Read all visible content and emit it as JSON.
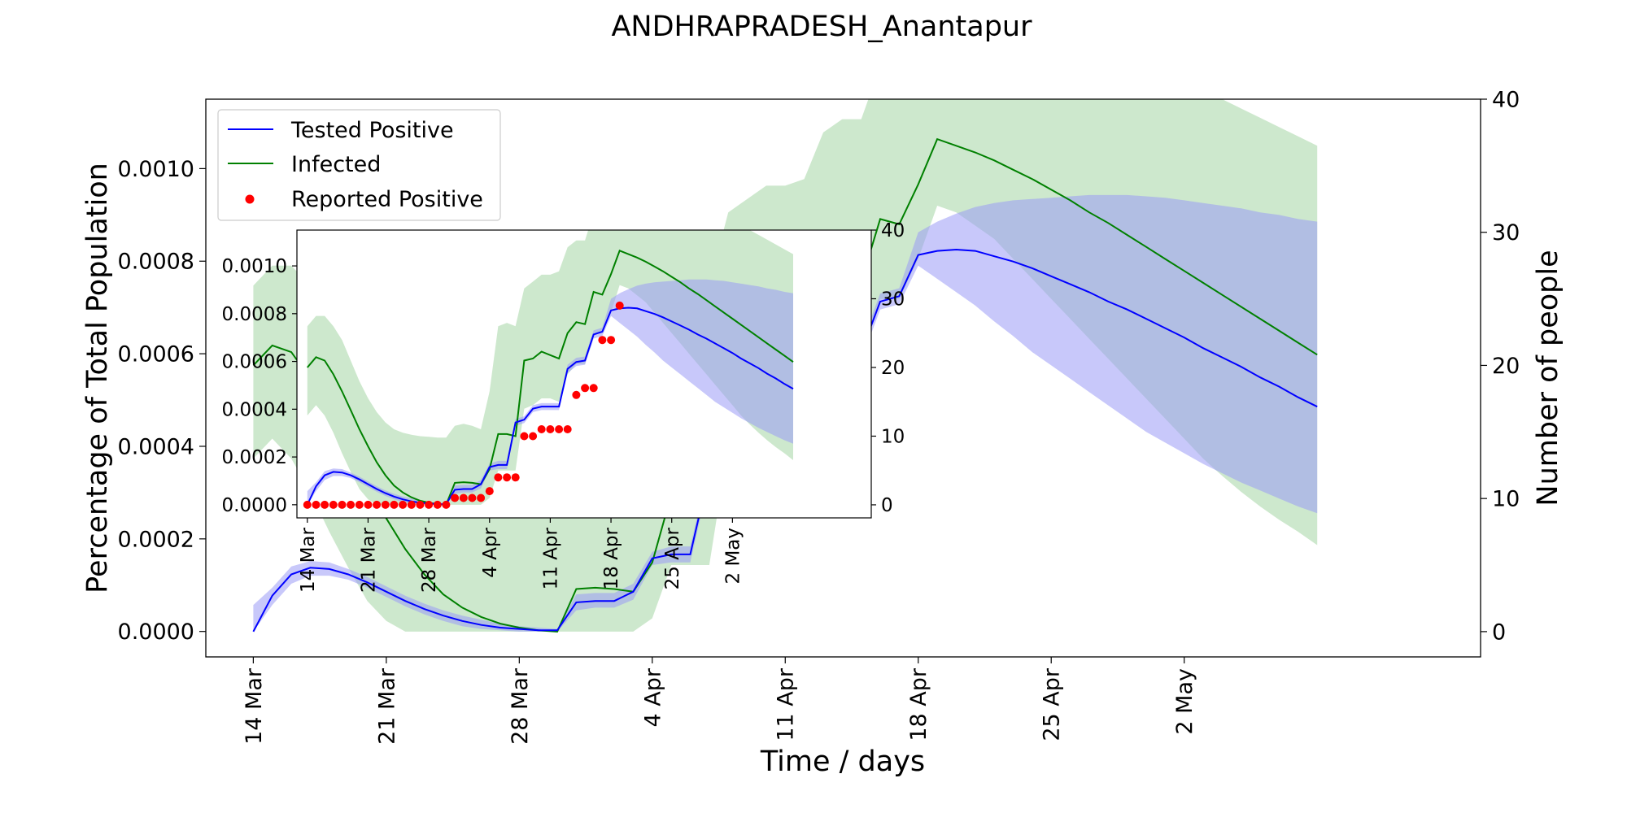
{
  "chart_data": {
    "type": "line",
    "title": "ANDHRAPRADESH_Anantapur",
    "xlabel": "Time / days",
    "ylabel_left": "Percentage of Total Population",
    "ylabel_right": "Number of people",
    "x_tick_labels": [
      "14 Mar",
      "21 Mar",
      "28 Mar",
      "4 Apr",
      "11 Apr",
      "18 Apr",
      "25 Apr",
      "2 May"
    ],
    "y_left_ticks": [
      "0.0000",
      "0.0002",
      "0.0004",
      "0.0006",
      "0.0008",
      "0.0010"
    ],
    "y_right_ticks": [
      "0",
      "10",
      "20",
      "30",
      "40"
    ],
    "ylim_left": [
      -5.5e-05,
      0.00115
    ],
    "ylim_right": [
      -1.9,
      40.0
    ],
    "grid": false,
    "legend_placement": "upper-left",
    "legend": [
      {
        "label": "Tested Positive",
        "kind": "line",
        "color": "#0000ff"
      },
      {
        "label": "Infected",
        "kind": "line",
        "color": "#008000"
      },
      {
        "label": "Reported Positive",
        "kind": "dot",
        "color": "#ff0000"
      }
    ],
    "colors": {
      "tested": "#0000ff",
      "tested_band": "#9a9af5",
      "infected": "#008000",
      "infected_band": "#9bd19b",
      "reported": "#ff0000"
    },
    "x_days": [
      0,
      1,
      2,
      3,
      4,
      5,
      6,
      7,
      8,
      9,
      10,
      11,
      12,
      13,
      14,
      15,
      16,
      17,
      18,
      19,
      20,
      21,
      22,
      23,
      24,
      25,
      26,
      27,
      28,
      29,
      30,
      31,
      32,
      33,
      34,
      35,
      36,
      37,
      38,
      39,
      40,
      41,
      42,
      43,
      44,
      45,
      46,
      47,
      48,
      49,
      50,
      51,
      52,
      53,
      54,
      55,
      56
    ],
    "series": [
      {
        "name": "Tested Positive",
        "axis": "right",
        "values": [
          0,
          2.7,
          4.3,
          4.8,
          4.7,
          4.3,
          3.7,
          3.0,
          2.3,
          1.7,
          1.2,
          0.8,
          0.5,
          0.3,
          0.2,
          0.1,
          0.1,
          2.2,
          2.3,
          2.3,
          3.0,
          5.5,
          5.8,
          5.8,
          12.0,
          12.4,
          14.0,
          14.3,
          14.3,
          14.3,
          19.8,
          20.8,
          21.0,
          24.8,
          25.2,
          28.3,
          28.6,
          28.7,
          28.6,
          28.2,
          27.8,
          27.3,
          26.7,
          26.1,
          25.5,
          24.8,
          24.2,
          23.5,
          22.8,
          22.1,
          21.3,
          20.6,
          19.9,
          19.1,
          18.4,
          17.6,
          16.9
        ],
        "band_lower": [
          0,
          2.0,
          3.6,
          4.2,
          4.2,
          3.9,
          3.3,
          2.6,
          1.9,
          1.3,
          0.8,
          0.4,
          0.2,
          0.1,
          0,
          0,
          0,
          1.6,
          1.8,
          1.8,
          2.4,
          5.0,
          5.2,
          5.2,
          11.5,
          11.9,
          13.5,
          13.8,
          13.8,
          13.8,
          19.2,
          20.2,
          20.4,
          24.2,
          24.6,
          27.5,
          26.5,
          25.5,
          24.5,
          23.3,
          22.2,
          21.0,
          20.0,
          19.0,
          18.0,
          17.0,
          16.0,
          15.0,
          14.2,
          13.4,
          12.6,
          11.9,
          11.2,
          10.6,
          10.0,
          9.4,
          8.9
        ],
        "band_upper": [
          2.0,
          3.3,
          4.9,
          5.3,
          5.2,
          4.7,
          4.1,
          3.4,
          2.7,
          2.1,
          1.6,
          1.2,
          0.9,
          0.6,
          0.4,
          0.3,
          0.2,
          2.8,
          2.9,
          2.9,
          3.6,
          6.0,
          6.4,
          6.4,
          12.5,
          12.9,
          14.5,
          14.8,
          14.8,
          14.8,
          20.4,
          21.4,
          21.6,
          25.4,
          25.8,
          30.0,
          30.8,
          31.4,
          31.9,
          32.2,
          32.4,
          32.5,
          32.6,
          32.7,
          32.8,
          32.8,
          32.8,
          32.7,
          32.6,
          32.4,
          32.2,
          32.0,
          31.8,
          31.5,
          31.3,
          31.0,
          30.8
        ]
      },
      {
        "name": "Infected",
        "axis": "right",
        "values": [
          20.0,
          21.5,
          21.0,
          19.0,
          16.5,
          13.8,
          11.0,
          8.5,
          6.2,
          4.3,
          2.8,
          1.8,
          1.1,
          0.6,
          0.3,
          0.1,
          0,
          3.2,
          3.3,
          3.2,
          3.0,
          5.2,
          10.3,
          10.3,
          10.0,
          21.0,
          21.3,
          22.3,
          21.8,
          21.3,
          25.0,
          26.6,
          26.3,
          31.0,
          30.6,
          33.6,
          37.0,
          36.5,
          36.0,
          35.4,
          34.7,
          34.0,
          33.2,
          32.4,
          31.5,
          30.7,
          29.8,
          28.9,
          28.0,
          27.1,
          26.2,
          25.3,
          24.4,
          23.5,
          22.6,
          21.7,
          20.8
        ],
        "band_lower": [
          13.0,
          14.5,
          13.0,
          10.5,
          7.5,
          4.8,
          2.3,
          0.8,
          0,
          0,
          0,
          0,
          0,
          0,
          0,
          0,
          0,
          0,
          0,
          0,
          0,
          1.0,
          5.0,
          5.0,
          5.0,
          14.0,
          14.5,
          15.5,
          15.5,
          15.0,
          19.0,
          20.5,
          20.5,
          25.0,
          25.0,
          28.0,
          32.0,
          31.5,
          30.5,
          29.5,
          28.0,
          26.5,
          25.0,
          23.5,
          22.0,
          20.5,
          19.0,
          17.5,
          16.0,
          14.5,
          13.0,
          11.7,
          10.5,
          9.4,
          8.4,
          7.5,
          6.5
        ],
        "band_upper": [
          26.0,
          27.5,
          27.5,
          26.0,
          24.0,
          21.0,
          18.0,
          15.5,
          13.5,
          12.0,
          11.0,
          10.5,
          10.2,
          10.0,
          9.9,
          9.8,
          9.8,
          11.5,
          11.8,
          11.5,
          11.0,
          16.5,
          26.0,
          26.5,
          26.0,
          31.5,
          32.5,
          33.5,
          33.5,
          34.0,
          37.5,
          38.5,
          38.5,
          42.5,
          43.0,
          44.8,
          45.0,
          45.0,
          45.0,
          45.0,
          44.9,
          44.7,
          44.5,
          44.2,
          43.8,
          43.4,
          42.9,
          42.4,
          41.8,
          41.2,
          40.6,
          40.0,
          39.3,
          38.6,
          37.9,
          37.2,
          36.5
        ]
      },
      {
        "name": "Reported Positive",
        "axis": "right",
        "type": "scatter",
        "values": [
          0,
          0,
          0,
          0,
          0,
          0,
          0,
          0,
          0,
          0,
          0,
          0,
          0,
          0,
          0,
          0,
          0,
          1,
          1,
          1,
          1,
          2,
          4,
          4,
          4,
          10,
          10,
          11,
          11,
          11,
          11,
          16,
          17,
          17,
          24,
          24,
          29
        ]
      }
    ]
  },
  "inset": {
    "x_tick_labels": [
      "14 Mar",
      "21 Mar",
      "28 Mar",
      "4 Apr",
      "11 Apr",
      "18 Apr",
      "25 Apr",
      "2 May"
    ],
    "y_left_ticks": [
      "0.0000",
      "0.0002",
      "0.0004",
      "0.0006",
      "0.0008",
      "0.0010"
    ],
    "y_right_ticks": [
      "0",
      "10",
      "20",
      "30",
      "40"
    ]
  }
}
